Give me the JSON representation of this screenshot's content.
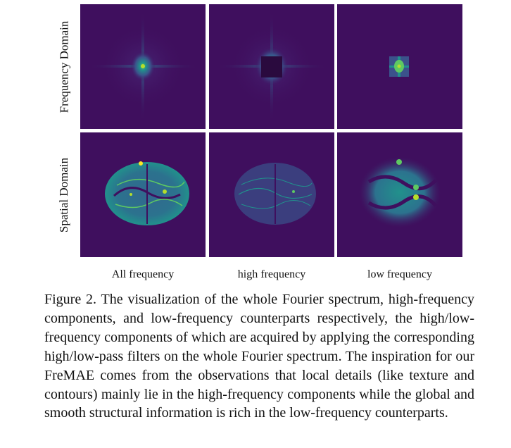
{
  "row_labels": [
    "Frequency Domain",
    "Spatial Domain"
  ],
  "column_labels": [
    "All frequency",
    "high frequency",
    "low frequency"
  ],
  "caption": "Figure 2. The visualization of the whole Fourier spectrum, high-frequency components, and low-frequency counterparts respectively, the high/low-frequency components of which are acquired by applying the corresponding high/low-pass filters on the whole Fourier spectrum. The inspiration for our FreMAE comes from the observations that local details (like texture and contours) mainly lie in the high-frequency components while the global and smooth structural information is rich in the low-frequency counterparts.",
  "colors": {
    "background_purple": "#3f0f5e",
    "viridis_mid": "#21918c",
    "viridis_high": "#fde725",
    "masked_center": "#2a0a3e"
  }
}
